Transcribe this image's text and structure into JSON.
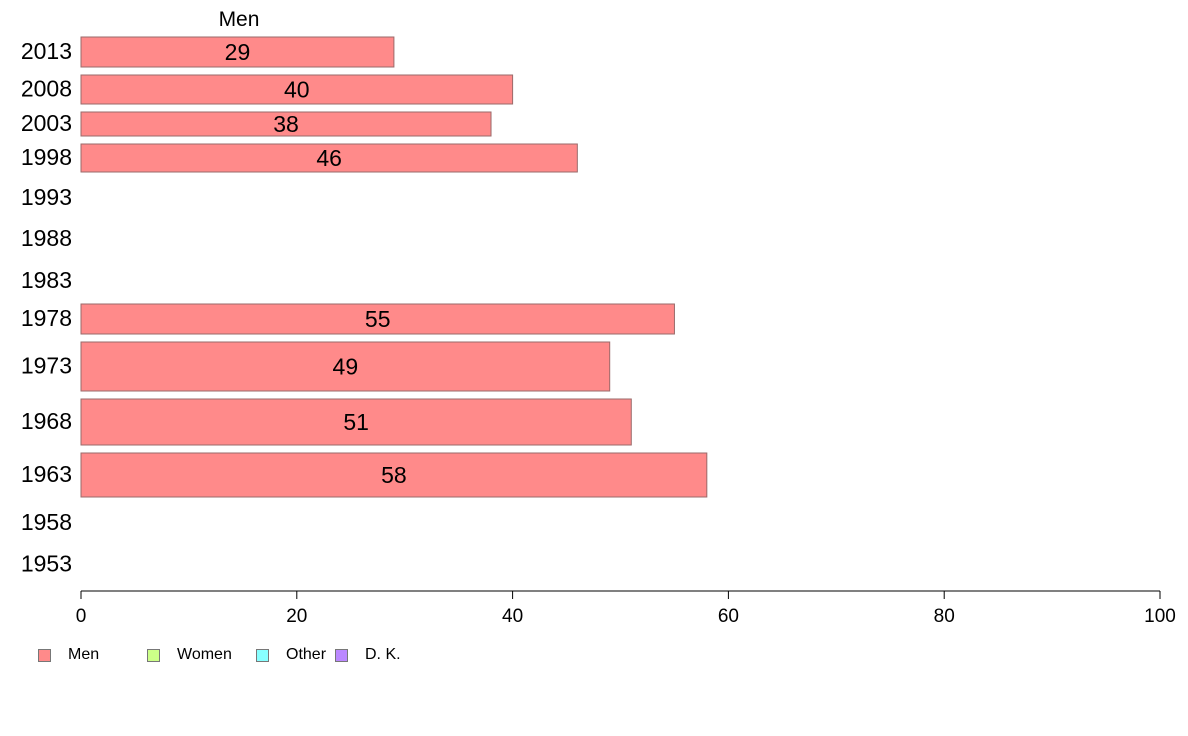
{
  "chart_data": {
    "type": "bar",
    "orientation": "horizontal",
    "title": "Men",
    "categories": [
      "2013",
      "2008",
      "2003",
      "1998",
      "1993",
      "1988",
      "1983",
      "1978",
      "1973",
      "1968",
      "1963",
      "1958",
      "1953"
    ],
    "series": [
      {
        "name": "Men",
        "values": [
          29,
          40,
          38,
          46,
          null,
          null,
          null,
          55,
          49,
          51,
          58,
          null,
          null
        ],
        "color": "#ff8a8a"
      }
    ],
    "xlim": [
      0,
      100
    ],
    "xticks": [
      "0",
      "20",
      "40",
      "60",
      "80",
      "100"
    ],
    "grid": false,
    "legend": {
      "placement": "bottom-left",
      "entries": [
        {
          "label": "Men",
          "color": "#ff8a8a"
        },
        {
          "label": "Women",
          "color": "#ccff88"
        },
        {
          "label": "Other",
          "color": "#88ffff"
        },
        {
          "label": "D. K.",
          "color": "#bb88ff"
        }
      ]
    }
  }
}
